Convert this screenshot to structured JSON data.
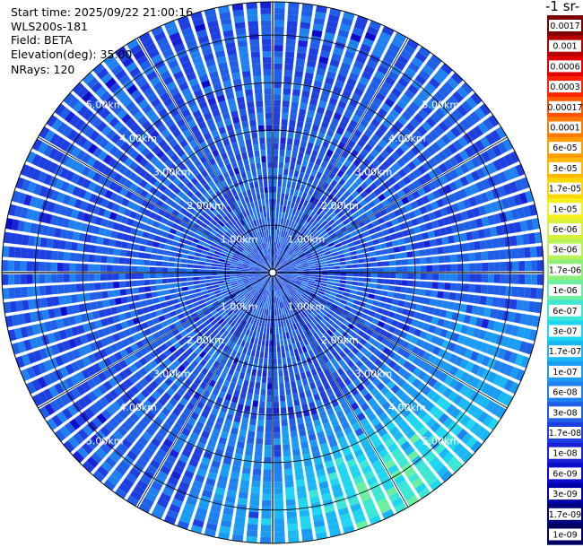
{
  "header": {
    "start_time": "Start time: 2025/09/22 21:00:16",
    "instrument": "WLS200s-181",
    "field": "Field: BETA",
    "elevation": "Elevation(deg): 35.00",
    "nrays": "NRays: 120"
  },
  "colorbar": {
    "unit_label": "-1 sr-",
    "labels": [
      "0.0017",
      "0.001",
      "0.0006",
      "0.0003",
      "0.00017",
      "0.0001",
      "6e-05",
      "3e-05",
      "1.7e-05",
      "1e-05",
      "6e-06",
      "3e-06",
      "1.7e-06",
      "1e-06",
      "6e-07",
      "3e-07",
      "1.7e-07",
      "1e-07",
      "6e-08",
      "3e-08",
      "1.7e-08",
      "1e-08",
      "6e-09",
      "3e-09",
      "1.7e-09",
      "1e-09"
    ],
    "colors": [
      "#7f0000",
      "#b40000",
      "#e00000",
      "#ff2200",
      "#ff5500",
      "#ff7a00",
      "#ff9c00",
      "#ffb800",
      "#ffd700",
      "#f5ef1e",
      "#d8f03a",
      "#b8f25a",
      "#8ef07a",
      "#6aeea0",
      "#3ce7d6",
      "#1fd6f0",
      "#19b8f5",
      "#1a9cf3",
      "#1f80ef",
      "#1f5fe8",
      "#1e3fe0",
      "#1821d6",
      "#0b0bcc",
      "#0000a8",
      "#00007f",
      "#000060"
    ]
  },
  "chart_data": {
    "type": "heatmap",
    "projection": "polar PPI scan",
    "title": "",
    "field": "BETA",
    "elevation_deg": 35.0,
    "n_rays": 120,
    "range_rings_km": [
      1,
      2,
      3,
      4,
      5
    ],
    "ring_labels": [
      "1.00km",
      "2.00km",
      "3.00km",
      "4.00km",
      "5.00km"
    ],
    "max_range_km": 5.7,
    "colorbar_scale": "log",
    "value_range": [
      1e-09,
      0.0017
    ],
    "typical_value": 3e-08,
    "enhanced_region": {
      "azimuth_deg": [
        100,
        200
      ],
      "range_km": [
        3.0,
        5.7
      ],
      "peak_value": 1e-06
    },
    "low_near_center": {
      "range_km": [
        0,
        1.6
      ],
      "value": 3e-08
    }
  }
}
